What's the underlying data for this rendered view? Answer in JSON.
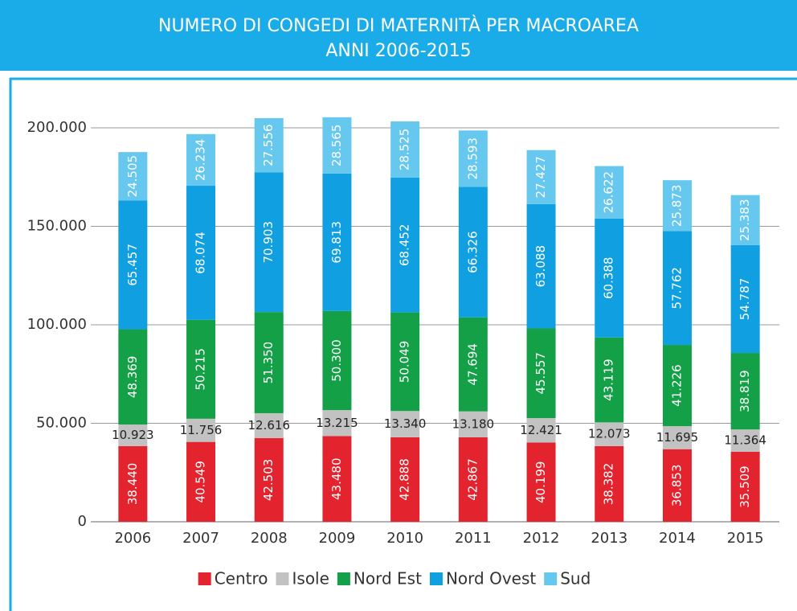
{
  "chart_data": {
    "type": "stacked_bar",
    "title": "NUMERO DI CONGEDI DI MATERNITÀ PER MACROAREA",
    "subtitle": "ANNI 2006-2015",
    "categories": [
      "2006",
      "2007",
      "2008",
      "2009",
      "2010",
      "2011",
      "2012",
      "2013",
      "2014",
      "2015"
    ],
    "series": [
      {
        "name": "Centro",
        "color": "#e3232e",
        "values": [
          38440,
          40549,
          42503,
          43480,
          42888,
          42867,
          40199,
          38382,
          36853,
          35509
        ],
        "value_labels": [
          "38.440",
          "40.549",
          "42.503",
          "43.480",
          "42.888",
          "42.867",
          "40.199",
          "38.382",
          "36.853",
          "35.509"
        ]
      },
      {
        "name": "Isole",
        "color": "#c2c2c2",
        "values": [
          10923,
          11756,
          12616,
          13215,
          13340,
          13180,
          12421,
          12073,
          11695,
          11364
        ],
        "value_labels": [
          "10.923",
          "11.756",
          "12.616",
          "13.215",
          "13.340",
          "13.180",
          "12.421",
          "12.073",
          "11.695",
          "11.364"
        ]
      },
      {
        "name": "Nord Est",
        "color": "#14a046",
        "values": [
          48369,
          50215,
          51350,
          50300,
          50049,
          47694,
          45557,
          43119,
          41226,
          38819
        ],
        "value_labels": [
          "48.369",
          "50.215",
          "51.350",
          "50.300",
          "50.049",
          "47.694",
          "45.557",
          "43.119",
          "41.226",
          "38.819"
        ]
      },
      {
        "name": "Nord Ovest",
        "color": "#109fe0",
        "values": [
          65457,
          68074,
          70903,
          69813,
          68452,
          66326,
          63088,
          60388,
          57762,
          54787
        ],
        "value_labels": [
          "65.457",
          "68.074",
          "70.903",
          "69.813",
          "68.452",
          "66.326",
          "63.088",
          "60.388",
          "57.762",
          "54.787"
        ]
      },
      {
        "name": "Sud",
        "color": "#66c8ef",
        "values": [
          24505,
          26234,
          27556,
          28565,
          28525,
          28593,
          27427,
          26622,
          25873,
          25383
        ],
        "value_labels": [
          "24.505",
          "26.234",
          "27.556",
          "28.565",
          "28.525",
          "28.593",
          "27.427",
          "26.622",
          "25.873",
          "25.383"
        ]
      }
    ],
    "ylim": [
      0,
      200000
    ],
    "yticks": [
      0,
      {
        "value": 50000,
        "label": "50.000"
      },
      {
        "value": 100000,
        "label": "100.000"
      },
      {
        "value": 150000,
        "label": "150.000"
      },
      {
        "value": 200000,
        "label": "200.000"
      }
    ],
    "grid": true,
    "legend": "bottom"
  }
}
